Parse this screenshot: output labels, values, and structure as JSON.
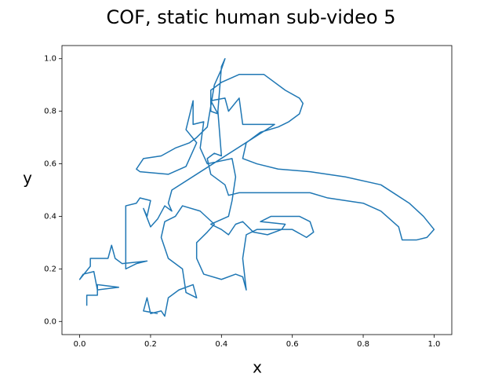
{
  "chart_data": {
    "type": "line",
    "title": "COF, static human sub-video 5",
    "xlabel": "x",
    "ylabel": "y",
    "color": "#1f77b4",
    "x": [
      0.02,
      0.02,
      0.05,
      0.05,
      0.11,
      0.05,
      0.04,
      0.01,
      0.0,
      0.03,
      0.03,
      0.08,
      0.09,
      0.1,
      0.12,
      0.19,
      0.16,
      0.13,
      0.13,
      0.13,
      0.16,
      0.17,
      0.2,
      0.19,
      0.18,
      0.2,
      0.22,
      0.24,
      0.26,
      0.25,
      0.26,
      0.55,
      0.46,
      0.45,
      0.42,
      0.41,
      0.37,
      0.39,
      0.37,
      0.37,
      0.4,
      0.45,
      0.52,
      0.58,
      0.62,
      0.63,
      0.62,
      0.59,
      0.56,
      0.51,
      0.47,
      0.46,
      0.5,
      0.56,
      0.65,
      0.75,
      0.85,
      0.93,
      0.97,
      1.0,
      0.98,
      0.95,
      0.91,
      0.9,
      0.85,
      0.8,
      0.7,
      0.65,
      0.55,
      0.45,
      0.42,
      0.41,
      0.37,
      0.36,
      0.38,
      0.4,
      0.39,
      0.4,
      0.41,
      0.4,
      0.38,
      0.36,
      0.33,
      0.31,
      0.27,
      0.23,
      0.18,
      0.16,
      0.17,
      0.25,
      0.3,
      0.33,
      0.3,
      0.32,
      0.32,
      0.35,
      0.34,
      0.36,
      0.43,
      0.44,
      0.43,
      0.42,
      0.37,
      0.4,
      0.42,
      0.44,
      0.46,
      0.49,
      0.53,
      0.57,
      0.58,
      0.51,
      0.54,
      0.59,
      0.62,
      0.65,
      0.66,
      0.64,
      0.6,
      0.56,
      0.5,
      0.47,
      0.46,
      0.47,
      0.46,
      0.44,
      0.4,
      0.35,
      0.33,
      0.33,
      0.36,
      0.38,
      0.34,
      0.29,
      0.27,
      0.24,
      0.23,
      0.25,
      0.29,
      0.3,
      0.33,
      0.32,
      0.28,
      0.25,
      0.24,
      0.23,
      0.2,
      0.19,
      0.18,
      0.22
    ],
    "values": [
      0.06,
      0.1,
      0.1,
      0.14,
      0.13,
      0.12,
      0.19,
      0.18,
      0.16,
      0.21,
      0.24,
      0.24,
      0.29,
      0.24,
      0.22,
      0.23,
      0.22,
      0.2,
      0.36,
      0.44,
      0.45,
      0.47,
      0.46,
      0.4,
      0.43,
      0.36,
      0.39,
      0.44,
      0.42,
      0.45,
      0.5,
      0.75,
      0.75,
      0.85,
      0.8,
      0.85,
      0.84,
      0.79,
      0.8,
      0.88,
      0.91,
      0.94,
      0.94,
      0.88,
      0.85,
      0.83,
      0.79,
      0.76,
      0.74,
      0.72,
      0.68,
      0.62,
      0.6,
      0.58,
      0.57,
      0.55,
      0.52,
      0.45,
      0.4,
      0.35,
      0.32,
      0.31,
      0.31,
      0.36,
      0.42,
      0.45,
      0.47,
      0.49,
      0.49,
      0.49,
      0.48,
      0.52,
      0.56,
      0.62,
      0.64,
      0.63,
      0.8,
      0.97,
      1.0,
      0.96,
      0.9,
      0.74,
      0.7,
      0.68,
      0.66,
      0.63,
      0.62,
      0.58,
      0.57,
      0.56,
      0.59,
      0.68,
      0.73,
      0.84,
      0.75,
      0.76,
      0.66,
      0.6,
      0.62,
      0.55,
      0.46,
      0.4,
      0.37,
      0.35,
      0.33,
      0.37,
      0.38,
      0.34,
      0.33,
      0.35,
      0.37,
      0.38,
      0.4,
      0.4,
      0.4,
      0.38,
      0.34,
      0.32,
      0.35,
      0.35,
      0.35,
      0.33,
      0.24,
      0.12,
      0.17,
      0.18,
      0.16,
      0.18,
      0.24,
      0.3,
      0.34,
      0.37,
      0.42,
      0.44,
      0.4,
      0.38,
      0.32,
      0.24,
      0.2,
      0.11,
      0.09,
      0.14,
      0.12,
      0.09,
      0.02,
      0.04,
      0.03,
      0.09,
      0.04,
      0.03
    ],
    "xlim": [
      -0.05,
      1.05
    ],
    "ylim": [
      -0.05,
      1.05
    ],
    "xticks": [
      {
        "value": 0,
        "label": "0.0"
      },
      0.2,
      0.4,
      0.6,
      0.8,
      {
        "value": 1,
        "label": "1.0"
      }
    ],
    "yticks": [
      {
        "value": 0,
        "label": "0.0"
      },
      0.2,
      0.4,
      0.6,
      0.8,
      {
        "value": 1,
        "label": "1.0"
      }
    ],
    "grid": false
  }
}
